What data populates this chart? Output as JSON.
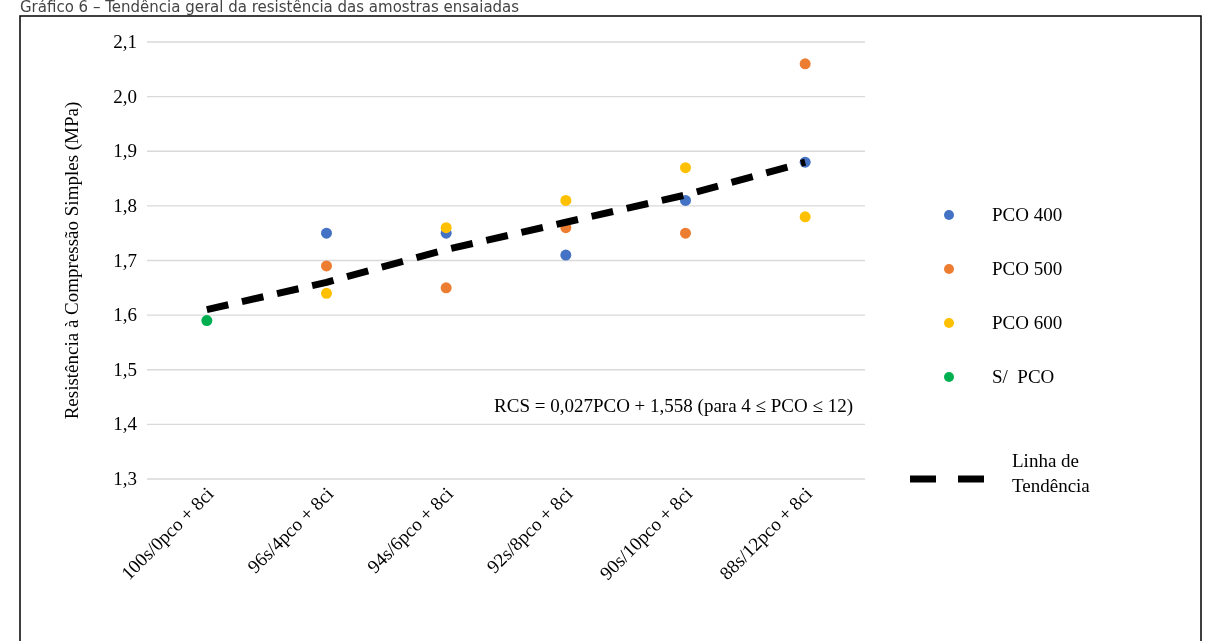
{
  "chart_data": {
    "type": "scatter",
    "title": "Gráfico 6 – Tendência geral da resistência das amostras ensaiadas",
    "ylabel": "Resistência à Compressão Simples (MPa)",
    "categories": [
      "100s/0pco + 8ci",
      "96s/4pco + 8ci",
      "94s/6pco + 8ci",
      "92s/8pco + 8ci",
      "90s/10pco + 8ci",
      "88s/12pco + 8ci"
    ],
    "ylim": [
      1.3,
      2.1
    ],
    "yticks": [
      {
        "value": 1.3,
        "label": "1,3"
      },
      {
        "value": 1.4,
        "label": "1,4"
      },
      {
        "value": 1.5,
        "label": "1,5"
      },
      {
        "value": 1.6,
        "label": "1,6"
      },
      {
        "value": 1.7,
        "label": "1,7"
      },
      {
        "value": 1.8,
        "label": "1,8"
      },
      {
        "value": 1.9,
        "label": "1,9"
      },
      {
        "value": 2.0,
        "label": "2,0"
      },
      {
        "value": 2.1,
        "label": "2,1"
      }
    ],
    "grid": "y",
    "legend": "right",
    "marker": "circle",
    "annotations": [
      "RCS = 0,027PCO + 1,558 (para 4 ≤ PCO ≤ 12)"
    ],
    "series": [
      {
        "name": "PCO 400",
        "color": "#4472c4",
        "values": [
          null,
          1.75,
          1.75,
          1.71,
          1.81,
          1.88
        ]
      },
      {
        "name": "PCO 500",
        "color": "#ed7d31",
        "values": [
          null,
          1.69,
          1.65,
          1.76,
          1.75,
          2.06
        ]
      },
      {
        "name": "PCO 600",
        "color": "#ffc000",
        "values": [
          null,
          1.64,
          1.76,
          1.81,
          1.87,
          1.78
        ]
      },
      {
        "name": "S/  PCO",
        "color": "#00b050",
        "values": [
          1.59,
          null,
          null,
          null,
          null,
          null
        ]
      },
      {
        "name": "Linha de Tendência",
        "type": "line",
        "marker": "none",
        "line_style": "dashed",
        "color": "#000000",
        "values": [
          1.61,
          1.66,
          1.72,
          1.77,
          1.82,
          1.88
        ]
      }
    ]
  }
}
